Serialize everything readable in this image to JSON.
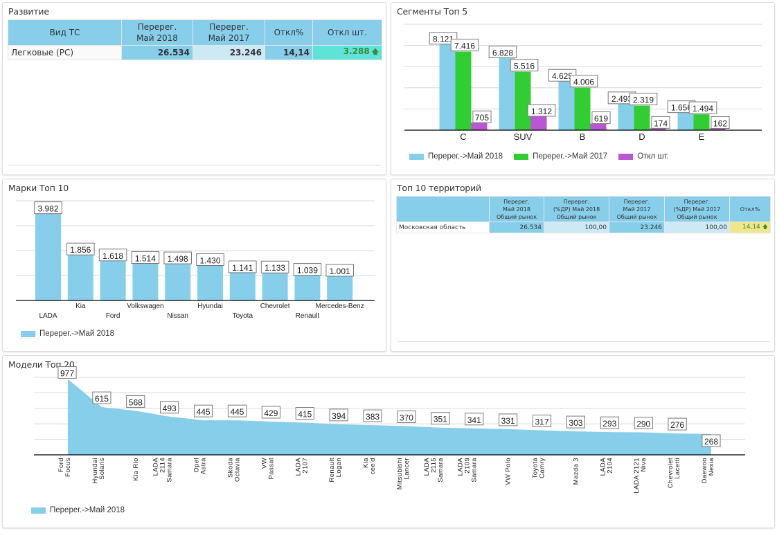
{
  "colors": {
    "header_bg": "#87ceeb",
    "cell_blue": "#87ceeb",
    "cell_lightblue": "#cde9f5",
    "cell_teal": "#5fe3d6",
    "cell_yellow": "#f0e68c",
    "series_2018": "#87ceeb",
    "series_2017": "#32cd32",
    "series_diff": "#ba55d3",
    "arrow_up": "#3a8a3a"
  },
  "panels": {
    "development": {
      "title": "Развитие",
      "table": {
        "headers": [
          "Вид ТС",
          "Перерег.\nМай 2018",
          "Перерег.\nМай 2017",
          "Откл%",
          "Откл шт."
        ],
        "rows": [
          {
            "type": "Легковые (PC)",
            "may2018": "26.534",
            "may2017": "23.246",
            "diff_pct": "14,14",
            "diff_units": "3.288",
            "trend": "up"
          }
        ]
      }
    },
    "territories": {
      "title": "Топ 10 территорий",
      "table": {
        "headers": [
          "",
          "Перерег.\nМай 2018\nОбщий рынок",
          "Перерег.\n(%ДР) Май 2018\nОбщий рынок",
          "Перерег.\nМай 2017\nОбщий рынок",
          "Перерег.\n(%ДР) Май 2017\nОбщий рынок",
          "Откл%"
        ],
        "rows": [
          {
            "region": "Московская область",
            "may2018": "26.534",
            "share2018": "100,00",
            "may2017": "23.246",
            "share2017": "100,00",
            "diff_pct": "14,14",
            "trend": "up"
          }
        ]
      }
    },
    "segments": {
      "title": "Сегменты Топ 5"
    },
    "brands": {
      "title": "Марки Топ 10"
    },
    "models": {
      "title": "Модели Топ 20"
    }
  },
  "chart_data": [
    {
      "id": "segments",
      "type": "bar",
      "title": "Сегменты Топ 5",
      "categories": [
        "C",
        "SUV",
        "B",
        "D",
        "E"
      ],
      "series": [
        {
          "name": "Перерег.->Май 2018",
          "values": [
            8121,
            6828,
            4625,
            2493,
            1656
          ],
          "labels": [
            "8.121",
            "6.828",
            "4.625",
            "2.493",
            "1.656"
          ]
        },
        {
          "name": "Перерег.->Май 2017",
          "values": [
            7416,
            5516,
            4006,
            2319,
            1494
          ],
          "labels": [
            "7.416",
            "5.516",
            "4.006",
            "2.319",
            "1.494"
          ]
        },
        {
          "name": "Откл шт.",
          "values": [
            705,
            1312,
            619,
            174,
            162
          ],
          "labels": [
            "705",
            "1.312",
            "619",
            "174",
            "162"
          ]
        }
      ],
      "ylim": [
        0,
        10000
      ],
      "grid": true,
      "legend": "bottom-left"
    },
    {
      "id": "brands",
      "type": "bar",
      "title": "Марки Топ 10",
      "categories": [
        "LADA",
        "Kia",
        "Ford",
        "Volkswagen",
        "Nissan",
        "Hyundai",
        "Toyota",
        "Chevrolet",
        "Renault",
        "Mercedes-Benz"
      ],
      "series": [
        {
          "name": "Перерег.->Май 2018",
          "values": [
            3982,
            1856,
            1618,
            1514,
            1498,
            1430,
            1141,
            1133,
            1039,
            1001
          ],
          "labels": [
            "3.982",
            "1.856",
            "1.618",
            "1.514",
            "1.498",
            "1.430",
            "1.141",
            "1.133",
            "1.039",
            "1.001"
          ]
        }
      ],
      "ylim": [
        0,
        4000
      ],
      "grid": true,
      "legend": "bottom-left"
    },
    {
      "id": "models",
      "type": "area",
      "title": "Модели Топ 20",
      "categories": [
        "Ford\nFocus",
        "Hyundai\nSolaris",
        "Kia Rio",
        "LADA\n2114\nSamara",
        "Opel\nAstra",
        "Skoda\nOctavia",
        "VW\nPassat",
        "LADA\n2107",
        "Renault\nLogan",
        "Kia\ncee'd",
        "Mitsubishi\nLancer",
        "LADA\n2115\nSamara",
        "LADA\n2109\nSamara",
        "VW Polo",
        "Toyota\nCamry",
        "Mazda 3",
        "LADA\n2104",
        "LADA 2121\nNiva",
        "Chevrolet\nLacetti",
        "Daewoo\nNexia"
      ],
      "series": [
        {
          "name": "Перерег.->Май 2018",
          "values": [
            977,
            615,
            568,
            493,
            445,
            445,
            429,
            415,
            394,
            383,
            370,
            351,
            341,
            331,
            317,
            303,
            293,
            290,
            276,
            268
          ]
        }
      ],
      "ylim": [
        0,
        1000
      ],
      "grid": true,
      "legend": "bottom-left"
    }
  ]
}
